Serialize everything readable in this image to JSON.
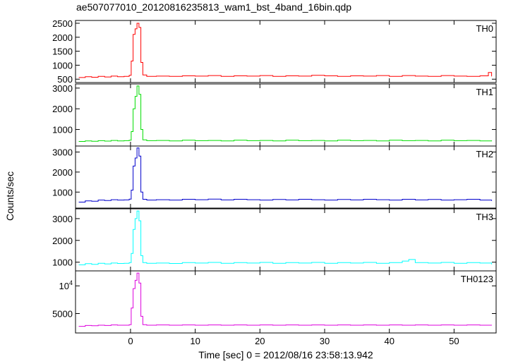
{
  "chart_data": {
    "type": "line",
    "title": "ae507077010_20120816235813_wam1_bst_4band_16bin.qdp",
    "xlabel": "Time [sec] 0 = 2012/08/16 23:58:13.942",
    "ylabel": "Counts/sec",
    "xlim": [
      -8.5,
      56.5
    ],
    "xticks": [
      0,
      10,
      20,
      30,
      40,
      50
    ],
    "grid": false,
    "panels": [
      {
        "name": "TH0",
        "color": "#ff0000",
        "ylim": [
          380,
          2600
        ],
        "yticks": [
          {
            "v": 500,
            "label": "500"
          },
          {
            "v": 1000,
            "label": "1000"
          },
          {
            "v": 1500,
            "label": "1500"
          },
          {
            "v": 2000,
            "label": "2000"
          },
          {
            "v": 2500,
            "label": "2500"
          }
        ],
        "points": [
          [
            -8,
            560
          ],
          [
            -7,
            590
          ],
          [
            -6,
            570
          ],
          [
            -5,
            600
          ],
          [
            -4,
            580
          ],
          [
            -3,
            610
          ],
          [
            -2,
            590
          ],
          [
            -1,
            600
          ],
          [
            -0.2,
            640
          ],
          [
            0.1,
            1150
          ],
          [
            0.4,
            2100
          ],
          [
            0.7,
            2300
          ],
          [
            1.0,
            2500
          ],
          [
            1.3,
            2350
          ],
          [
            1.6,
            1100
          ],
          [
            1.9,
            650
          ],
          [
            2.5,
            600
          ],
          [
            4,
            610
          ],
          [
            6,
            600
          ],
          [
            8,
            620
          ],
          [
            10,
            610
          ],
          [
            12,
            630
          ],
          [
            14,
            600
          ],
          [
            16,
            620
          ],
          [
            18,
            610
          ],
          [
            20,
            630
          ],
          [
            22,
            600
          ],
          [
            24,
            620
          ],
          [
            26,
            610
          ],
          [
            28,
            640
          ],
          [
            30,
            620
          ],
          [
            32,
            600
          ],
          [
            34,
            620
          ],
          [
            36,
            610
          ],
          [
            38,
            630
          ],
          [
            40,
            600
          ],
          [
            42,
            630
          ],
          [
            44,
            610
          ],
          [
            46,
            600
          ],
          [
            48,
            630
          ],
          [
            50,
            610
          ],
          [
            52,
            600
          ],
          [
            54,
            620
          ],
          [
            55.3,
            740
          ],
          [
            55.8,
            600
          ]
        ]
      },
      {
        "name": "TH1",
        "color": "#00dd00",
        "ylim": [
          200,
          3200
        ],
        "yticks": [
          {
            "v": 1000,
            "label": "1000"
          },
          {
            "v": 2000,
            "label": "2000"
          },
          {
            "v": 3000,
            "label": "3000"
          }
        ],
        "points": [
          [
            -8,
            420
          ],
          [
            -7,
            450
          ],
          [
            -6,
            430
          ],
          [
            -5,
            460
          ],
          [
            -4,
            440
          ],
          [
            -3,
            470
          ],
          [
            -2,
            450
          ],
          [
            -1,
            460
          ],
          [
            -0.2,
            480
          ],
          [
            0.1,
            900
          ],
          [
            0.4,
            2000
          ],
          [
            0.7,
            2600
          ],
          [
            1.0,
            3100
          ],
          [
            1.3,
            2700
          ],
          [
            1.6,
            1000
          ],
          [
            1.9,
            500
          ],
          [
            2.5,
            460
          ],
          [
            4,
            470
          ],
          [
            6,
            450
          ],
          [
            8,
            480
          ],
          [
            10,
            460
          ],
          [
            12,
            470
          ],
          [
            14,
            450
          ],
          [
            16,
            480
          ],
          [
            18,
            460
          ],
          [
            20,
            470
          ],
          [
            22,
            450
          ],
          [
            24,
            480
          ],
          [
            26,
            460
          ],
          [
            28,
            470
          ],
          [
            30,
            450
          ],
          [
            32,
            480
          ],
          [
            34,
            460
          ],
          [
            36,
            470
          ],
          [
            38,
            450
          ],
          [
            40,
            480
          ],
          [
            42,
            460
          ],
          [
            44,
            470
          ],
          [
            46,
            450
          ],
          [
            48,
            480
          ],
          [
            50,
            460
          ],
          [
            52,
            470
          ],
          [
            54,
            450
          ],
          [
            55.8,
            470
          ]
        ]
      },
      {
        "name": "TH2",
        "color": "#0000cc",
        "ylim": [
          200,
          3300
        ],
        "yticks": [
          {
            "v": 1000,
            "label": "1000"
          },
          {
            "v": 2000,
            "label": "2000"
          },
          {
            "v": 3000,
            "label": "3000"
          }
        ],
        "points": [
          [
            -8,
            500
          ],
          [
            -7,
            560
          ],
          [
            -6,
            540
          ],
          [
            -5,
            600
          ],
          [
            -4,
            580
          ],
          [
            -3,
            620
          ],
          [
            -2,
            600
          ],
          [
            -1,
            610
          ],
          [
            -0.2,
            650
          ],
          [
            0.1,
            1100
          ],
          [
            0.4,
            2300
          ],
          [
            0.7,
            2700
          ],
          [
            1.0,
            3200
          ],
          [
            1.3,
            2800
          ],
          [
            1.6,
            1000
          ],
          [
            1.9,
            640
          ],
          [
            2.5,
            600
          ],
          [
            4,
            620
          ],
          [
            6,
            600
          ],
          [
            8,
            640
          ],
          [
            10,
            620
          ],
          [
            12,
            650
          ],
          [
            14,
            610
          ],
          [
            16,
            640
          ],
          [
            18,
            620
          ],
          [
            20,
            600
          ],
          [
            22,
            630
          ],
          [
            24,
            610
          ],
          [
            26,
            640
          ],
          [
            28,
            620
          ],
          [
            30,
            600
          ],
          [
            32,
            630
          ],
          [
            34,
            610
          ],
          [
            36,
            640
          ],
          [
            38,
            620
          ],
          [
            40,
            600
          ],
          [
            42,
            640
          ],
          [
            44,
            610
          ],
          [
            46,
            630
          ],
          [
            48,
            600
          ],
          [
            50,
            620
          ],
          [
            52,
            640
          ],
          [
            54,
            600
          ],
          [
            55.8,
            560
          ]
        ]
      },
      {
        "name": "TH3",
        "color": "#00ffff",
        "ylim": [
          600,
          3450
        ],
        "yticks": [
          {
            "v": 1000,
            "label": "1000"
          },
          {
            "v": 2000,
            "label": "2000"
          },
          {
            "v": 3000,
            "label": "3000"
          }
        ],
        "points": [
          [
            -8,
            880
          ],
          [
            -7,
            930
          ],
          [
            -6,
            900
          ],
          [
            -5,
            950
          ],
          [
            -4,
            920
          ],
          [
            -3,
            960
          ],
          [
            -2,
            940
          ],
          [
            -1,
            950
          ],
          [
            -0.2,
            980
          ],
          [
            0.1,
            1400
          ],
          [
            0.4,
            2500
          ],
          [
            0.7,
            3000
          ],
          [
            1.0,
            3350
          ],
          [
            1.3,
            2900
          ],
          [
            1.6,
            1300
          ],
          [
            1.9,
            980
          ],
          [
            2.5,
            950
          ],
          [
            4,
            960
          ],
          [
            6,
            940
          ],
          [
            8,
            980
          ],
          [
            10,
            960
          ],
          [
            12,
            990
          ],
          [
            14,
            950
          ],
          [
            16,
            980
          ],
          [
            18,
            960
          ],
          [
            20,
            990
          ],
          [
            22,
            950
          ],
          [
            24,
            980
          ],
          [
            26,
            960
          ],
          [
            28,
            990
          ],
          [
            30,
            950
          ],
          [
            32,
            980
          ],
          [
            34,
            960
          ],
          [
            36,
            990
          ],
          [
            38,
            950
          ],
          [
            40,
            980
          ],
          [
            42,
            1050
          ],
          [
            43,
            1120
          ],
          [
            44,
            980
          ],
          [
            46,
            960
          ],
          [
            48,
            990
          ],
          [
            50,
            950
          ],
          [
            52,
            980
          ],
          [
            54,
            960
          ],
          [
            55.8,
            900
          ]
        ]
      },
      {
        "name": "TH0123",
        "color": "#dd00dd",
        "ylim": [
          1500,
          12700
        ],
        "yticks": [
          {
            "v": 5000,
            "label": "5000"
          },
          {
            "v": 10000,
            "label": "10",
            "sup": "4"
          }
        ],
        "points": [
          [
            -8,
            2700
          ],
          [
            -7,
            2850
          ],
          [
            -6,
            2800
          ],
          [
            -5,
            2900
          ],
          [
            -4,
            2850
          ],
          [
            -3,
            2950
          ],
          [
            -2,
            2900
          ],
          [
            -1,
            2900
          ],
          [
            -0.2,
            3000
          ],
          [
            0.1,
            6000
          ],
          [
            0.4,
            9500
          ],
          [
            0.7,
            11000
          ],
          [
            1.0,
            12300
          ],
          [
            1.3,
            10500
          ],
          [
            1.6,
            4500
          ],
          [
            1.9,
            3000
          ],
          [
            2.5,
            2900
          ],
          [
            4,
            2950
          ],
          [
            6,
            2900
          ],
          [
            8,
            2950
          ],
          [
            10,
            2900
          ],
          [
            12,
            2950
          ],
          [
            14,
            2900
          ],
          [
            16,
            2950
          ],
          [
            18,
            2900
          ],
          [
            20,
            2950
          ],
          [
            22,
            2900
          ],
          [
            24,
            2950
          ],
          [
            26,
            2900
          ],
          [
            28,
            2950
          ],
          [
            30,
            2900
          ],
          [
            32,
            2950
          ],
          [
            34,
            2900
          ],
          [
            36,
            2950
          ],
          [
            38,
            2900
          ],
          [
            40,
            2950
          ],
          [
            42,
            2900
          ],
          [
            44,
            2950
          ],
          [
            46,
            2900
          ],
          [
            48,
            2950
          ],
          [
            50,
            2900
          ],
          [
            52,
            2950
          ],
          [
            54,
            2900
          ],
          [
            55.8,
            2850
          ]
        ]
      }
    ]
  }
}
